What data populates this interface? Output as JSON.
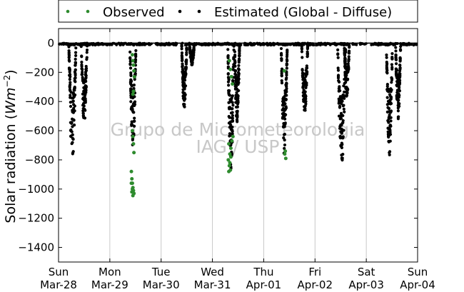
{
  "chart_data": {
    "type": "scatter",
    "ylabel": "Solar radiation (Wm^-2)",
    "ylabel_parts": {
      "main": "Solar radiation (",
      "unit": "Wm",
      "exp": "−2",
      "close": ")"
    },
    "ylim": [
      -1500,
      100
    ],
    "yticks": [
      0,
      -200,
      -400,
      -600,
      -800,
      -1000,
      -1200,
      -1400
    ],
    "xlim": [
      0,
      7
    ],
    "xticks": [
      {
        "x": 0,
        "day": "Sun",
        "date": "Mar-28"
      },
      {
        "x": 1,
        "day": "Mon",
        "date": "Mar-29"
      },
      {
        "x": 2,
        "day": "Tue",
        "date": "Mar-30"
      },
      {
        "x": 3,
        "day": "Wed",
        "date": "Mar-31"
      },
      {
        "x": 4,
        "day": "Thu",
        "date": "Apr-01"
      },
      {
        "x": 5,
        "day": "Fri",
        "date": "Apr-02"
      },
      {
        "x": 6,
        "day": "Sat",
        "date": "Apr-03"
      },
      {
        "x": 7,
        "day": "Sun",
        "date": "Apr-04"
      }
    ],
    "grid": "vertical",
    "legend_position": "top",
    "zero_line": true,
    "series": [
      {
        "name": "Observed",
        "color": "#2e8b2e",
        "points": [
          [
            1.44,
            -80
          ],
          [
            1.45,
            -120
          ],
          [
            1.46,
            -150
          ],
          [
            1.47,
            -190
          ],
          [
            1.48,
            -230
          ],
          [
            1.46,
            -330
          ],
          [
            1.45,
            -350
          ],
          [
            1.44,
            -600
          ],
          [
            1.45,
            -640
          ],
          [
            1.46,
            -690
          ],
          [
            1.47,
            -750
          ],
          [
            1.42,
            -880
          ],
          [
            1.43,
            -930
          ],
          [
            1.44,
            -960
          ],
          [
            1.45,
            -990
          ],
          [
            1.46,
            -1010
          ],
          [
            1.47,
            -1030
          ],
          [
            1.45,
            -1045
          ],
          [
            1.43,
            -1020
          ],
          [
            1.44,
            -1000
          ],
          [
            1.42,
            -960
          ],
          [
            3.33,
            -120
          ],
          [
            3.35,
            -180
          ],
          [
            3.37,
            -230
          ],
          [
            3.39,
            -280
          ],
          [
            3.32,
            -690
          ],
          [
            3.34,
            -760
          ],
          [
            3.36,
            -720
          ],
          [
            3.38,
            -670
          ],
          [
            3.4,
            -640
          ],
          [
            3.31,
            -800
          ],
          [
            3.33,
            -840
          ],
          [
            3.35,
            -870
          ],
          [
            3.32,
            -880
          ],
          [
            3.34,
            -820
          ],
          [
            3.36,
            -780
          ],
          [
            4.4,
            -190
          ],
          [
            4.42,
            -740
          ],
          [
            4.43,
            -790
          ],
          [
            4.41,
            -760
          ]
        ]
      },
      {
        "name": "Estimated (Global - Diffuse)",
        "color": "#000000"
      }
    ]
  },
  "watermark": {
    "line1": "Grupo de Micrometeorologia",
    "line2": "IAG / USP"
  },
  "colors": {
    "observed": "#2e8b2e",
    "estimated": "#000000",
    "grid": "#c8c8c8",
    "watermark": "#c8c8c8"
  }
}
